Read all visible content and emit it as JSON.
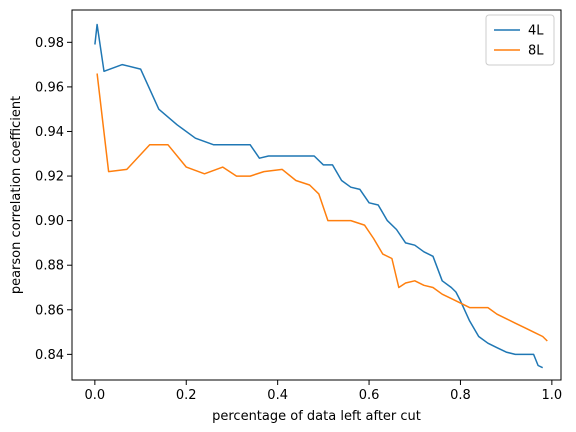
{
  "chart_data": {
    "type": "line",
    "title": "",
    "xlabel": "percentage of data left after cut",
    "ylabel": "pearson correlation coefficient",
    "xlim": [
      -0.05,
      1.02
    ],
    "ylim": [
      0.8285,
      0.9945
    ],
    "xticks": [
      0.0,
      0.2,
      0.4,
      0.6,
      0.8,
      1.0
    ],
    "xtick_labels": [
      "0.0",
      "0.2",
      "0.4",
      "0.6",
      "0.8",
      "1.0"
    ],
    "yticks": [
      0.84,
      0.86,
      0.88,
      0.9,
      0.92,
      0.94,
      0.96,
      0.98
    ],
    "ytick_labels": [
      "0.84",
      "0.86",
      "0.88",
      "0.90",
      "0.92",
      "0.94",
      "0.96",
      "0.98"
    ],
    "grid": false,
    "legend": {
      "position": "top-right"
    },
    "series": [
      {
        "name": "4L",
        "color": "#1f77b4",
        "x": [
          0.0,
          0.005,
          0.02,
          0.06,
          0.1,
          0.14,
          0.18,
          0.22,
          0.26,
          0.3,
          0.34,
          0.36,
          0.38,
          0.4,
          0.42,
          0.44,
          0.46,
          0.48,
          0.5,
          0.52,
          0.54,
          0.56,
          0.58,
          0.6,
          0.62,
          0.64,
          0.66,
          0.68,
          0.7,
          0.72,
          0.74,
          0.76,
          0.78,
          0.79,
          0.8,
          0.82,
          0.84,
          0.86,
          0.88,
          0.9,
          0.92,
          0.94,
          0.96,
          0.97,
          0.98
        ],
        "y": [
          0.979,
          0.988,
          0.967,
          0.97,
          0.968,
          0.95,
          0.943,
          0.937,
          0.934,
          0.934,
          0.934,
          0.928,
          0.929,
          0.929,
          0.929,
          0.929,
          0.929,
          0.929,
          0.925,
          0.925,
          0.918,
          0.915,
          0.914,
          0.908,
          0.907,
          0.9,
          0.896,
          0.89,
          0.889,
          0.886,
          0.884,
          0.873,
          0.87,
          0.868,
          0.864,
          0.855,
          0.848,
          0.845,
          0.843,
          0.841,
          0.84,
          0.84,
          0.84,
          0.835,
          0.834
        ]
      },
      {
        "name": "8L",
        "color": "#ff7f0e",
        "x": [
          0.005,
          0.03,
          0.07,
          0.12,
          0.16,
          0.2,
          0.24,
          0.28,
          0.31,
          0.34,
          0.37,
          0.41,
          0.44,
          0.47,
          0.49,
          0.51,
          0.53,
          0.56,
          0.59,
          0.61,
          0.63,
          0.65,
          0.665,
          0.68,
          0.7,
          0.72,
          0.74,
          0.76,
          0.78,
          0.8,
          0.82,
          0.84,
          0.86,
          0.88,
          0.9,
          0.92,
          0.94,
          0.96,
          0.98,
          0.99
        ],
        "y": [
          0.966,
          0.922,
          0.923,
          0.934,
          0.934,
          0.924,
          0.921,
          0.924,
          0.92,
          0.92,
          0.922,
          0.923,
          0.918,
          0.916,
          0.912,
          0.9,
          0.9,
          0.9,
          0.898,
          0.892,
          0.885,
          0.883,
          0.87,
          0.872,
          0.873,
          0.871,
          0.87,
          0.867,
          0.865,
          0.863,
          0.861,
          0.861,
          0.861,
          0.858,
          0.856,
          0.854,
          0.852,
          0.85,
          0.848,
          0.846
        ]
      }
    ]
  }
}
